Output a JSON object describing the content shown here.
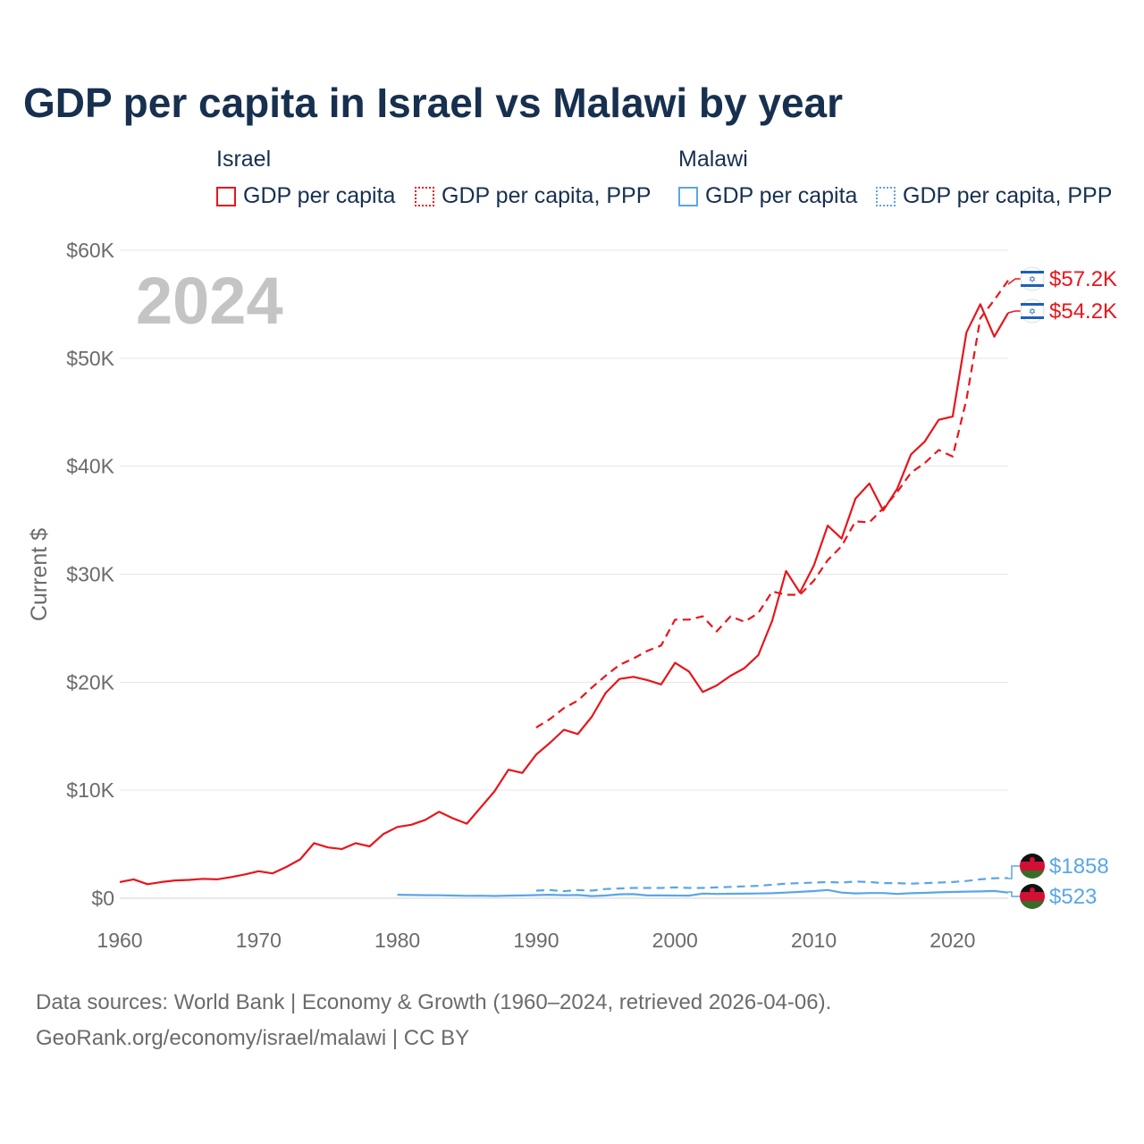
{
  "title": "GDP per capita in Israel vs Malawi by year",
  "legend": {
    "groups": [
      {
        "name": "Israel",
        "items": [
          {
            "label": "GDP per capita",
            "color": "#e8151b",
            "style": "solid"
          },
          {
            "label": "GDP per capita, PPP",
            "color": "#e8151b",
            "style": "dotted"
          }
        ]
      },
      {
        "name": "Malawi",
        "items": [
          {
            "label": "GDP per capita",
            "color": "#5aa6e6",
            "style": "solid"
          },
          {
            "label": "GDP per capita, PPP",
            "color": "#5aa6e6",
            "style": "dotted"
          }
        ]
      }
    ]
  },
  "year_label": "2024",
  "end_labels": {
    "israel_ppp": "$57.2K",
    "israel_gdp": "$54.2K",
    "malawi_ppp": "$1858",
    "malawi_gdp": "$523"
  },
  "colors": {
    "israel": "#e8151b",
    "malawi": "#5aa6e6",
    "grid": "#e6e6e6",
    "axis_text": "#6b6b6b",
    "year_watermark": "#c4c4c4"
  },
  "footer": {
    "line1": "Data sources: World Bank | Economy & Growth (1960–2024, retrieved 2026-04-06).",
    "line2": "GeoRank.org/economy/israel/malawi | CC BY"
  },
  "chart_data": {
    "type": "line",
    "title": "GDP per capita in Israel vs Malawi by year",
    "xlabel": "",
    "ylabel": "Current $",
    "xlim": [
      1960,
      2024
    ],
    "ylim": [
      0,
      60000
    ],
    "x_ticks": [
      1960,
      1970,
      1980,
      1990,
      2000,
      2010,
      2020
    ],
    "y_ticks": [
      0,
      10000,
      20000,
      30000,
      40000,
      50000,
      60000
    ],
    "y_tick_labels": [
      "$0",
      "$10K",
      "$20K",
      "$30K",
      "$40K",
      "$50K",
      "$60K"
    ],
    "x_tick_labels": [
      "1960",
      "1970",
      "1980",
      "1990",
      "2000",
      "2010",
      "2020"
    ],
    "series": [
      {
        "name": "Israel GDP per capita",
        "country": "Israel",
        "style": "solid",
        "color": "#e8151b",
        "x": [
          1960,
          1961,
          1962,
          1963,
          1964,
          1965,
          1966,
          1967,
          1968,
          1969,
          1970,
          1971,
          1972,
          1973,
          1974,
          1975,
          1976,
          1977,
          1978,
          1979,
          1980,
          1981,
          1982,
          1983,
          1984,
          1985,
          1986,
          1987,
          1988,
          1989,
          1990,
          1991,
          1992,
          1993,
          1994,
          1995,
          1996,
          1997,
          1998,
          1999,
          2000,
          2001,
          2002,
          2003,
          2004,
          2005,
          2006,
          2007,
          2008,
          2009,
          2010,
          2011,
          2012,
          2013,
          2014,
          2015,
          2016,
          2017,
          2018,
          2019,
          2020,
          2021,
          2022,
          2023,
          2024
        ],
        "values": [
          1500,
          1750,
          1300,
          1500,
          1650,
          1700,
          1800,
          1750,
          1950,
          2200,
          2500,
          2300,
          2900,
          3600,
          5100,
          4700,
          4550,
          5100,
          4800,
          5950,
          6600,
          6800,
          7250,
          8000,
          7400,
          6900,
          8400,
          9900,
          11900,
          11600,
          13300,
          14400,
          15600,
          15200,
          16800,
          19000,
          20300,
          20500,
          20200,
          19800,
          21800,
          21000,
          19100,
          19700,
          20600,
          21300,
          22500,
          25700,
          30300,
          28300,
          30800,
          34500,
          33300,
          37000,
          38400,
          35900,
          37900,
          41100,
          42300,
          44300,
          44600,
          52400,
          55000,
          52000,
          54200
        ]
      },
      {
        "name": "Israel GDP per capita, PPP",
        "country": "Israel",
        "style": "dashed",
        "color": "#e8151b",
        "x": [
          1990,
          1991,
          1992,
          1993,
          1994,
          1995,
          1996,
          1997,
          1998,
          1999,
          2000,
          2001,
          2002,
          2003,
          2004,
          2005,
          2006,
          2007,
          2008,
          2009,
          2010,
          2011,
          2012,
          2013,
          2014,
          2015,
          2016,
          2017,
          2018,
          2019,
          2020,
          2021,
          2022,
          2023,
          2024
        ],
        "values": [
          15800,
          16600,
          17600,
          18300,
          19500,
          20600,
          21600,
          22200,
          22900,
          23400,
          25800,
          25800,
          26100,
          24700,
          26100,
          25600,
          26400,
          28400,
          28100,
          28100,
          29400,
          31300,
          32600,
          34900,
          34800,
          36100,
          37600,
          39400,
          40300,
          41500,
          40900,
          46200,
          53700,
          55400,
          57200
        ]
      },
      {
        "name": "Malawi GDP per capita",
        "country": "Malawi",
        "style": "solid",
        "color": "#5aa6e6",
        "x": [
          1980,
          1981,
          1982,
          1983,
          1984,
          1985,
          1986,
          1987,
          1988,
          1989,
          1990,
          1991,
          1992,
          1993,
          1994,
          1995,
          1996,
          1997,
          1998,
          1999,
          2000,
          2001,
          2002,
          2003,
          2004,
          2005,
          2006,
          2007,
          2008,
          2009,
          2010,
          2011,
          2012,
          2013,
          2014,
          2015,
          2016,
          2017,
          2018,
          2019,
          2020,
          2021,
          2022,
          2023,
          2024
        ],
        "values": [
          320,
          300,
          280,
          270,
          250,
          220,
          230,
          210,
          240,
          260,
          290,
          320,
          280,
          300,
          200,
          250,
          360,
          380,
          260,
          260,
          250,
          240,
          430,
          400,
          410,
          420,
          440,
          460,
          520,
          590,
          660,
          760,
          520,
          450,
          480,
          480,
          400,
          460,
          500,
          550,
          580,
          610,
          630,
          670,
          523
        ]
      },
      {
        "name": "Malawi GDP per capita, PPP",
        "country": "Malawi",
        "style": "dashed",
        "color": "#5aa6e6",
        "x": [
          1990,
          1991,
          1992,
          1993,
          1994,
          1995,
          1996,
          1997,
          1998,
          1999,
          2000,
          2001,
          2002,
          2003,
          2004,
          2005,
          2006,
          2007,
          2008,
          2009,
          2010,
          2011,
          2012,
          2013,
          2014,
          2015,
          2016,
          2017,
          2018,
          2019,
          2020,
          2021,
          2022,
          2023,
          2024
        ],
        "values": [
          700,
          750,
          650,
          750,
          700,
          850,
          900,
          950,
          950,
          950,
          1000,
          950,
          950,
          1000,
          1050,
          1100,
          1150,
          1250,
          1350,
          1400,
          1450,
          1500,
          1450,
          1550,
          1500,
          1400,
          1400,
          1350,
          1400,
          1450,
          1500,
          1600,
          1750,
          1850,
          1858
        ]
      }
    ]
  }
}
